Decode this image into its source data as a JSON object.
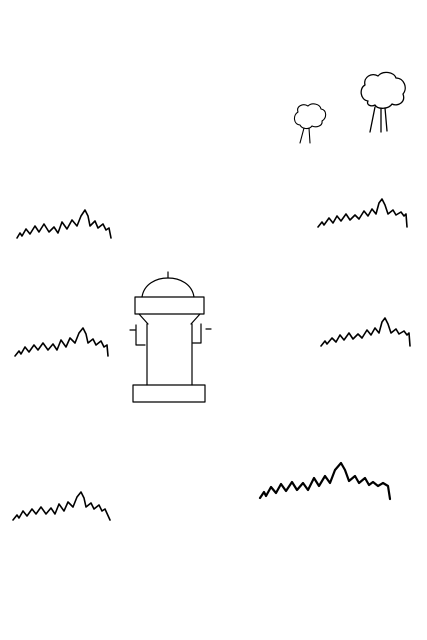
{
  "canvas": {
    "background": "#ffffff",
    "ink_color": "#000000"
  },
  "objects": [
    {
      "kind": "fire-hydrant",
      "icon": "fire-hydrant-icon",
      "count": 1
    },
    {
      "kind": "tree",
      "icon": "tree-icon",
      "count": 2
    },
    {
      "kind": "grass-tuft",
      "icon": "grass-icon",
      "count": 6
    }
  ]
}
